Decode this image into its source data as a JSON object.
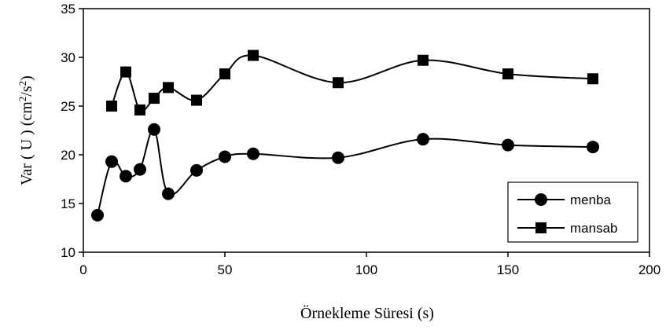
{
  "chart_data": {
    "type": "line",
    "title": "",
    "xlabel": "Örnekleme Süresi (s)",
    "ylabel": {
      "prefix": "Var ( U )  (cm",
      "sup1": "2",
      "mid": "/s",
      "sup2": "2",
      "suffix": ")"
    },
    "xlim": [
      0,
      200
    ],
    "ylim": [
      10,
      35
    ],
    "xticks": [
      "0",
      "50",
      "100",
      "150",
      "200"
    ],
    "yticks": [
      "10",
      "15",
      "20",
      "25",
      "30",
      "35"
    ],
    "grid": false,
    "smooth": true,
    "legend_position": "bottom-right",
    "series": [
      {
        "name": "menba",
        "marker": "circle",
        "color": "#000000",
        "x": [
          5,
          10,
          15,
          20,
          25,
          30,
          40,
          50,
          60,
          90,
          120,
          150,
          180
        ],
        "y": [
          13.8,
          19.3,
          17.8,
          18.5,
          22.6,
          16.0,
          18.4,
          19.8,
          20.1,
          19.7,
          21.6,
          21.0,
          20.8
        ]
      },
      {
        "name": "mansab",
        "marker": "square",
        "color": "#000000",
        "x": [
          10,
          15,
          20,
          25,
          30,
          40,
          50,
          60,
          90,
          120,
          150,
          180
        ],
        "y": [
          25.0,
          28.5,
          24.6,
          25.8,
          26.9,
          25.6,
          28.3,
          30.2,
          27.4,
          29.7,
          28.3,
          27.8
        ]
      }
    ]
  }
}
